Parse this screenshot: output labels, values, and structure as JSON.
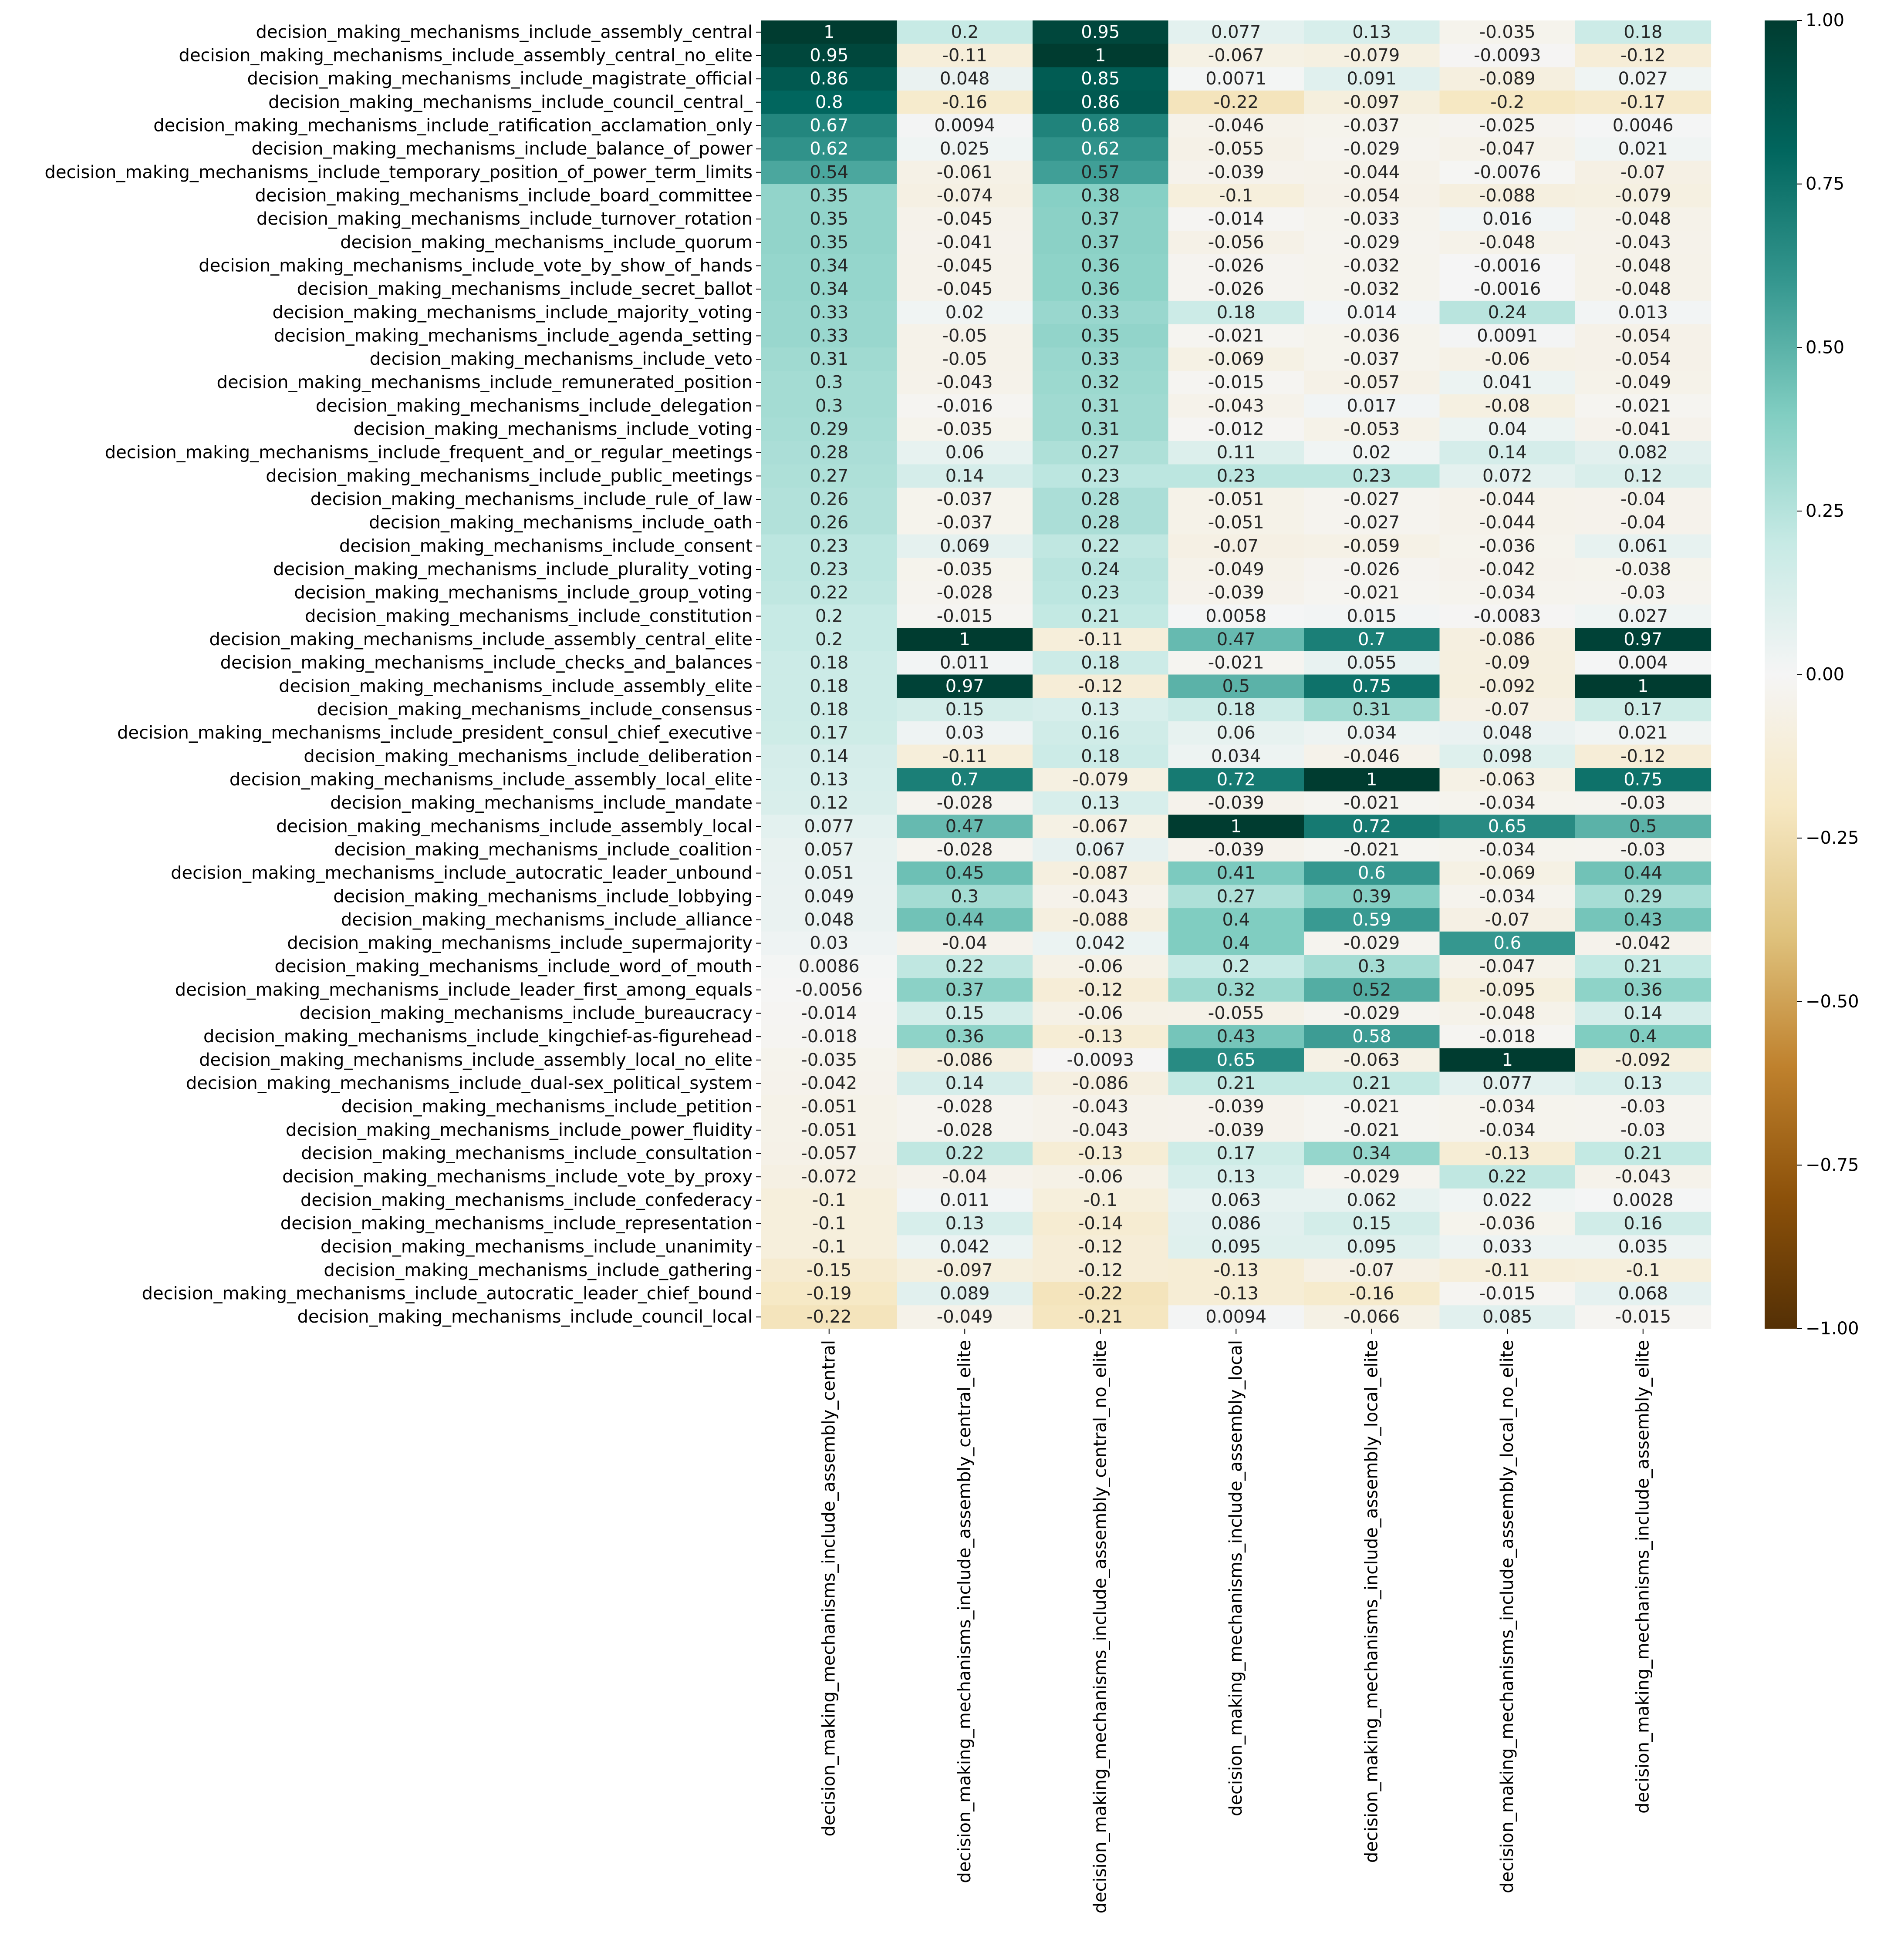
{
  "chart_data": {
    "type": "heatmap",
    "title": "",
    "xlabel": "",
    "ylabel": "",
    "colormap": "BrBG",
    "vmin": -1.0,
    "vmax": 1.0,
    "annotated": true,
    "columns": [
      "decision_making_mechanisms_include_assembly_central",
      "decision_making_mechanisms_include_assembly_central_elite",
      "decision_making_mechanisms_include_assembly_central_no_elite",
      "decision_making_mechanisms_include_assembly_local",
      "decision_making_mechanisms_include_assembly_local_elite",
      "decision_making_mechanisms_include_assembly_local_no_elite",
      "decision_making_mechanisms_include_assembly_elite"
    ],
    "rows": [
      "decision_making_mechanisms_include_assembly_central",
      "decision_making_mechanisms_include_assembly_central_no_elite",
      "decision_making_mechanisms_include_magistrate_official",
      "decision_making_mechanisms_include_council_central_",
      "decision_making_mechanisms_include_ratification_acclamation_only",
      "decision_making_mechanisms_include_balance_of_power",
      "decision_making_mechanisms_include_temporary_position_of_power_term_limits",
      "decision_making_mechanisms_include_board_committee",
      "decision_making_mechanisms_include_turnover_rotation",
      "decision_making_mechanisms_include_quorum",
      "decision_making_mechanisms_include_vote_by_show_of_hands",
      "decision_making_mechanisms_include_secret_ballot",
      "decision_making_mechanisms_include_majority_voting",
      "decision_making_mechanisms_include_agenda_setting",
      "decision_making_mechanisms_include_veto",
      "decision_making_mechanisms_include_remunerated_position",
      "decision_making_mechanisms_include_delegation",
      "decision_making_mechanisms_include_voting",
      "decision_making_mechanisms_include_frequent_and_or_regular_meetings",
      "decision_making_mechanisms_include_public_meetings",
      "decision_making_mechanisms_include_rule_of_law",
      "decision_making_mechanisms_include_oath",
      "decision_making_mechanisms_include_consent",
      "decision_making_mechanisms_include_plurality_voting",
      "decision_making_mechanisms_include_group_voting",
      "decision_making_mechanisms_include_constitution",
      "decision_making_mechanisms_include_assembly_central_elite",
      "decision_making_mechanisms_include_checks_and_balances",
      "decision_making_mechanisms_include_assembly_elite",
      "decision_making_mechanisms_include_consensus",
      "decision_making_mechanisms_include_president_consul_chief_executive",
      "decision_making_mechanisms_include_deliberation",
      "decision_making_mechanisms_include_assembly_local_elite",
      "decision_making_mechanisms_include_mandate",
      "decision_making_mechanisms_include_assembly_local",
      "decision_making_mechanisms_include_coalition",
      "decision_making_mechanisms_include_autocratic_leader_unbound",
      "decision_making_mechanisms_include_lobbying",
      "decision_making_mechanisms_include_alliance",
      "decision_making_mechanisms_include_supermajority",
      "decision_making_mechanisms_include_word_of_mouth",
      "decision_making_mechanisms_include_leader_first_among_equals",
      "decision_making_mechanisms_include_bureaucracy",
      "decision_making_mechanisms_include_kingchief-as-figurehead",
      "decision_making_mechanisms_include_assembly_local_no_elite",
      "decision_making_mechanisms_include_dual-sex_political_system",
      "decision_making_mechanisms_include_petition",
      "decision_making_mechanisms_include_power_fluidity",
      "decision_making_mechanisms_include_consultation",
      "decision_making_mechanisms_include_vote_by_proxy",
      "decision_making_mechanisms_include_confederacy",
      "decision_making_mechanisms_include_representation",
      "decision_making_mechanisms_include_unanimity",
      "decision_making_mechanisms_include_gathering",
      "decision_making_mechanisms_include_autocratic_leader_chief_bound",
      "decision_making_mechanisms_include_council_local"
    ],
    "values": [
      [
        "1",
        "0.2",
        "0.95",
        "0.077",
        "0.13",
        "-0.035",
        "0.18"
      ],
      [
        "0.95",
        "-0.11",
        "1",
        "-0.067",
        "-0.079",
        "-0.0093",
        "-0.12"
      ],
      [
        "0.86",
        "0.048",
        "0.85",
        "0.0071",
        "0.091",
        "-0.089",
        "0.027"
      ],
      [
        "0.8",
        "-0.16",
        "0.86",
        "-0.22",
        "-0.097",
        "-0.2",
        "-0.17"
      ],
      [
        "0.67",
        "0.0094",
        "0.68",
        "-0.046",
        "-0.037",
        "-0.025",
        "0.0046"
      ],
      [
        "0.62",
        "0.025",
        "0.62",
        "-0.055",
        "-0.029",
        "-0.047",
        "0.021"
      ],
      [
        "0.54",
        "-0.061",
        "0.57",
        "-0.039",
        "-0.044",
        "-0.0076",
        "-0.07"
      ],
      [
        "0.35",
        "-0.074",
        "0.38",
        "-0.1",
        "-0.054",
        "-0.088",
        "-0.079"
      ],
      [
        "0.35",
        "-0.045",
        "0.37",
        "-0.014",
        "-0.033",
        "0.016",
        "-0.048"
      ],
      [
        "0.35",
        "-0.041",
        "0.37",
        "-0.056",
        "-0.029",
        "-0.048",
        "-0.043"
      ],
      [
        "0.34",
        "-0.045",
        "0.36",
        "-0.026",
        "-0.032",
        "-0.0016",
        "-0.048"
      ],
      [
        "0.34",
        "-0.045",
        "0.36",
        "-0.026",
        "-0.032",
        "-0.0016",
        "-0.048"
      ],
      [
        "0.33",
        "0.02",
        "0.33",
        "0.18",
        "0.014",
        "0.24",
        "0.013"
      ],
      [
        "0.33",
        "-0.05",
        "0.35",
        "-0.021",
        "-0.036",
        "0.0091",
        "-0.054"
      ],
      [
        "0.31",
        "-0.05",
        "0.33",
        "-0.069",
        "-0.037",
        "-0.06",
        "-0.054"
      ],
      [
        "0.3",
        "-0.043",
        "0.32",
        "-0.015",
        "-0.057",
        "0.041",
        "-0.049"
      ],
      [
        "0.3",
        "-0.016",
        "0.31",
        "-0.043",
        "0.017",
        "-0.08",
        "-0.021"
      ],
      [
        "0.29",
        "-0.035",
        "0.31",
        "-0.012",
        "-0.053",
        "0.04",
        "-0.041"
      ],
      [
        "0.28",
        "0.06",
        "0.27",
        "0.11",
        "0.02",
        "0.14",
        "0.082"
      ],
      [
        "0.27",
        "0.14",
        "0.23",
        "0.23",
        "0.23",
        "0.072",
        "0.12"
      ],
      [
        "0.26",
        "-0.037",
        "0.28",
        "-0.051",
        "-0.027",
        "-0.044",
        "-0.04"
      ],
      [
        "0.26",
        "-0.037",
        "0.28",
        "-0.051",
        "-0.027",
        "-0.044",
        "-0.04"
      ],
      [
        "0.23",
        "0.069",
        "0.22",
        "-0.07",
        "-0.059",
        "-0.036",
        "0.061"
      ],
      [
        "0.23",
        "-0.035",
        "0.24",
        "-0.049",
        "-0.026",
        "-0.042",
        "-0.038"
      ],
      [
        "0.22",
        "-0.028",
        "0.23",
        "-0.039",
        "-0.021",
        "-0.034",
        "-0.03"
      ],
      [
        "0.2",
        "-0.015",
        "0.21",
        "0.0058",
        "0.015",
        "-0.0083",
        "0.027"
      ],
      [
        "0.2",
        "1",
        "-0.11",
        "0.47",
        "0.7",
        "-0.086",
        "0.97"
      ],
      [
        "0.18",
        "0.011",
        "0.18",
        "-0.021",
        "0.055",
        "-0.09",
        "0.004"
      ],
      [
        "0.18",
        "0.97",
        "-0.12",
        "0.5",
        "0.75",
        "-0.092",
        "1"
      ],
      [
        "0.18",
        "0.15",
        "0.13",
        "0.18",
        "0.31",
        "-0.07",
        "0.17"
      ],
      [
        "0.17",
        "0.03",
        "0.16",
        "0.06",
        "0.034",
        "0.048",
        "0.021"
      ],
      [
        "0.14",
        "-0.11",
        "0.18",
        "0.034",
        "-0.046",
        "0.098",
        "-0.12"
      ],
      [
        "0.13",
        "0.7",
        "-0.079",
        "0.72",
        "1",
        "-0.063",
        "0.75"
      ],
      [
        "0.12",
        "-0.028",
        "0.13",
        "-0.039",
        "-0.021",
        "-0.034",
        "-0.03"
      ],
      [
        "0.077",
        "0.47",
        "-0.067",
        "1",
        "0.72",
        "0.65",
        "0.5"
      ],
      [
        "0.057",
        "-0.028",
        "0.067",
        "-0.039",
        "-0.021",
        "-0.034",
        "-0.03"
      ],
      [
        "0.051",
        "0.45",
        "-0.087",
        "0.41",
        "0.6",
        "-0.069",
        "0.44"
      ],
      [
        "0.049",
        "0.3",
        "-0.043",
        "0.27",
        "0.39",
        "-0.034",
        "0.29"
      ],
      [
        "0.048",
        "0.44",
        "-0.088",
        "0.4",
        "0.59",
        "-0.07",
        "0.43"
      ],
      [
        "0.03",
        "-0.04",
        "0.042",
        "0.4",
        "-0.029",
        "0.6",
        "-0.042"
      ],
      [
        "0.0086",
        "0.22",
        "-0.06",
        "0.2",
        "0.3",
        "-0.047",
        "0.21"
      ],
      [
        "-0.0056",
        "0.37",
        "-0.12",
        "0.32",
        "0.52",
        "-0.095",
        "0.36"
      ],
      [
        "-0.014",
        "0.15",
        "-0.06",
        "-0.055",
        "-0.029",
        "-0.048",
        "0.14"
      ],
      [
        "-0.018",
        "0.36",
        "-0.13",
        "0.43",
        "0.58",
        "-0.018",
        "0.4"
      ],
      [
        "-0.035",
        "-0.086",
        "-0.0093",
        "0.65",
        "-0.063",
        "1",
        "-0.092"
      ],
      [
        "-0.042",
        "0.14",
        "-0.086",
        "0.21",
        "0.21",
        "0.077",
        "0.13"
      ],
      [
        "-0.051",
        "-0.028",
        "-0.043",
        "-0.039",
        "-0.021",
        "-0.034",
        "-0.03"
      ],
      [
        "-0.051",
        "-0.028",
        "-0.043",
        "-0.039",
        "-0.021",
        "-0.034",
        "-0.03"
      ],
      [
        "-0.057",
        "0.22",
        "-0.13",
        "0.17",
        "0.34",
        "-0.13",
        "0.21"
      ],
      [
        "-0.072",
        "-0.04",
        "-0.06",
        "0.13",
        "-0.029",
        "0.22",
        "-0.043"
      ],
      [
        "-0.1",
        "0.011",
        "-0.1",
        "0.063",
        "0.062",
        "0.022",
        "0.0028"
      ],
      [
        "-0.1",
        "0.13",
        "-0.14",
        "0.086",
        "0.15",
        "-0.036",
        "0.16"
      ],
      [
        "-0.1",
        "0.042",
        "-0.12",
        "0.095",
        "0.095",
        "0.033",
        "0.035"
      ],
      [
        "-0.15",
        "-0.097",
        "-0.12",
        "-0.13",
        "-0.07",
        "-0.11",
        "-0.1"
      ],
      [
        "-0.19",
        "0.089",
        "-0.22",
        "-0.13",
        "-0.16",
        "-0.015",
        "0.068"
      ],
      [
        "-0.22",
        "-0.049",
        "-0.21",
        "0.0094",
        "-0.066",
        "0.085",
        "-0.015"
      ]
    ],
    "colorbar": {
      "ticks": [
        "1.00",
        "0.75",
        "0.50",
        "0.25",
        "0.00",
        "−0.25",
        "−0.50",
        "−0.75",
        "−1.00"
      ],
      "tick_values": [
        1.0,
        0.75,
        0.5,
        0.25,
        0.0,
        -0.25,
        -0.5,
        -0.75,
        -1.0
      ]
    },
    "grid": false,
    "legend": "colorbar-right"
  }
}
